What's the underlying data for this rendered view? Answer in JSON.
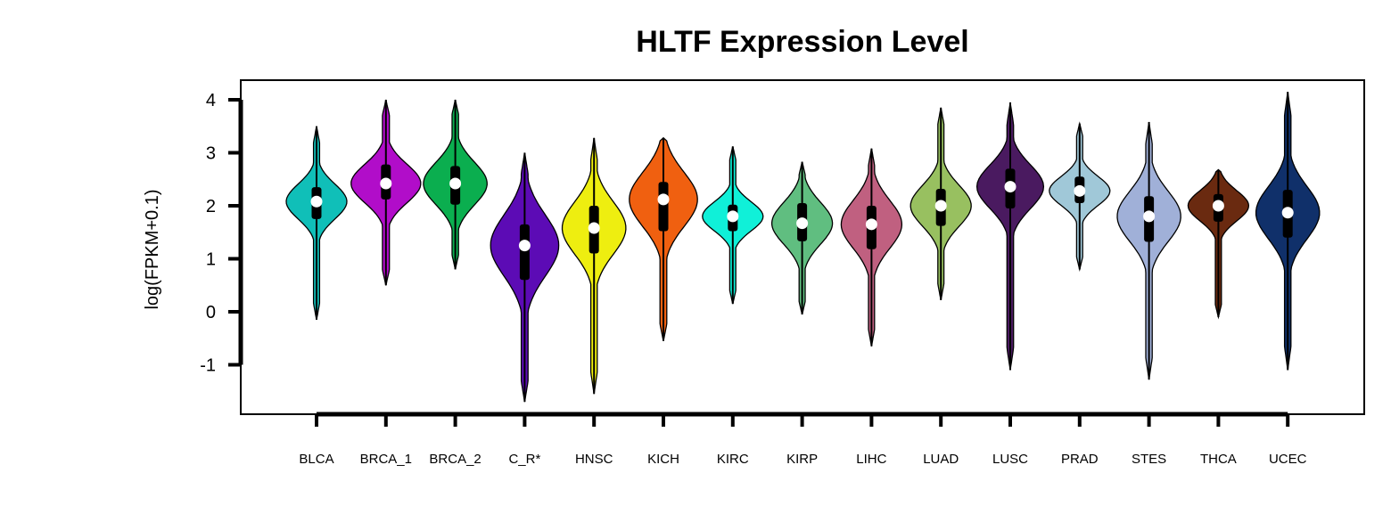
{
  "chart_data": {
    "type": "violin",
    "title": "HLTF Expression Level",
    "xlabel": "",
    "ylabel": "log(FPKM+0.1)",
    "ylim": [
      -1.9,
      4.35
    ],
    "yticks": [
      -1,
      0,
      1,
      2,
      3,
      4
    ],
    "ytick_labels": [
      "-1",
      "0",
      "1",
      "2",
      "3",
      "4"
    ],
    "grid": false,
    "legend": "none",
    "categories": [
      "BLCA",
      "BRCA_1",
      "BRCA_2",
      "C_R*",
      "HNSC",
      "KICH",
      "KIRC",
      "KIRP",
      "LIHC",
      "LUAD",
      "LUSC",
      "PRAD",
      "STES",
      "THCA",
      "UCEC"
    ],
    "series": [
      {
        "category": "BLCA",
        "color": "#10BFB8",
        "min": -0.15,
        "q1": 1.75,
        "median": 2.08,
        "q3": 2.35,
        "max": 3.5,
        "hw": 0.4
      },
      {
        "category": "BRCA_1",
        "color": "#B10DC9",
        "min": 0.5,
        "q1": 2.12,
        "median": 2.42,
        "q3": 2.78,
        "max": 4.0,
        "hw": 0.46
      },
      {
        "category": "BRCA_2",
        "color": "#0BAE4F",
        "min": 0.8,
        "q1": 2.02,
        "median": 2.42,
        "q3": 2.75,
        "max": 4.0,
        "hw": 0.42
      },
      {
        "category": "C_R*",
        "color": "#5C0BB5",
        "min": -1.7,
        "q1": 0.6,
        "median": 1.25,
        "q3": 1.65,
        "max": 3.0,
        "hw": 0.45
      },
      {
        "category": "HNSC",
        "color": "#EEEE10",
        "min": -1.55,
        "q1": 1.1,
        "median": 1.58,
        "q3": 2.0,
        "max": 3.28,
        "hw": 0.42
      },
      {
        "category": "KICH",
        "color": "#F06010",
        "min": -0.55,
        "q1": 1.52,
        "median": 2.12,
        "q3": 2.45,
        "max": 3.28,
        "hw": 0.45
      },
      {
        "category": "KIRC",
        "color": "#10F0D8",
        "min": 0.15,
        "q1": 1.52,
        "median": 1.8,
        "q3": 2.02,
        "max": 3.12,
        "hw": 0.4
      },
      {
        "category": "KIRP",
        "color": "#60BE80",
        "min": -0.05,
        "q1": 1.33,
        "median": 1.67,
        "q3": 2.05,
        "max": 2.83,
        "hw": 0.4
      },
      {
        "category": "LIHC",
        "color": "#C06080",
        "min": -0.65,
        "q1": 1.18,
        "median": 1.65,
        "q3": 2.0,
        "max": 3.08,
        "hw": 0.4
      },
      {
        "category": "LUAD",
        "color": "#98C060",
        "min": 0.22,
        "q1": 1.62,
        "median": 2.0,
        "q3": 2.32,
        "max": 3.85,
        "hw": 0.4
      },
      {
        "category": "LUSC",
        "color": "#4A1A60",
        "min": -1.1,
        "q1": 1.95,
        "median": 2.36,
        "q3": 2.7,
        "max": 3.95,
        "hw": 0.44
      },
      {
        "category": "PRAD",
        "color": "#A0C8D8",
        "min": 0.8,
        "q1": 2.05,
        "median": 2.28,
        "q3": 2.55,
        "max": 3.55,
        "hw": 0.4
      },
      {
        "category": "STES",
        "color": "#A0B0D8",
        "min": -1.28,
        "q1": 1.32,
        "median": 1.8,
        "q3": 2.18,
        "max": 3.58,
        "hw": 0.42
      },
      {
        "category": "THCA",
        "color": "#6A2A10",
        "min": -0.1,
        "q1": 1.7,
        "median": 2.0,
        "q3": 2.22,
        "max": 2.68,
        "hw": 0.4
      },
      {
        "category": "UCEC",
        "color": "#10306A",
        "min": -1.1,
        "q1": 1.4,
        "median": 1.87,
        "q3": 2.3,
        "max": 4.15,
        "hw": 0.42
      }
    ]
  }
}
